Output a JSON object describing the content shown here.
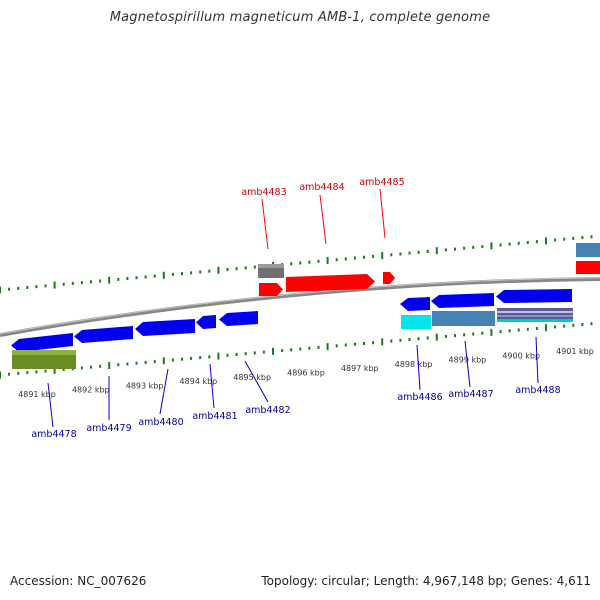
{
  "title": "Magnetospirillum magneticum AMB-1, complete genome",
  "footer": {
    "accession": "Accession: NC_007626",
    "topology": "Topology: circular; Length: 4,967,148 bp; Genes: 4,611"
  },
  "colors": {
    "forward_gene": "#ff0000",
    "reverse_gene": "#0000ee",
    "label_forward": "#cc0000",
    "label_reverse": "#0000aa",
    "tick": "#1a7a1a",
    "backbone": "#888888"
  },
  "scale_labels": [
    "4891 kbp",
    "4892 kbp",
    "4893 kbp",
    "4894 kbp",
    "4895 kbp",
    "4896 kbp",
    "4897 kbp",
    "4898 kbp",
    "4899 kbp",
    "4900 kbp",
    "4901 kbp"
  ],
  "gene_labels_top": [
    "amb4483",
    "amb4484",
    "amb4485"
  ],
  "gene_labels_bottom": [
    "amb4478",
    "amb4479",
    "amb4480",
    "amb4481",
    "amb4482",
    "amb4486",
    "amb4487",
    "amb4488"
  ]
}
